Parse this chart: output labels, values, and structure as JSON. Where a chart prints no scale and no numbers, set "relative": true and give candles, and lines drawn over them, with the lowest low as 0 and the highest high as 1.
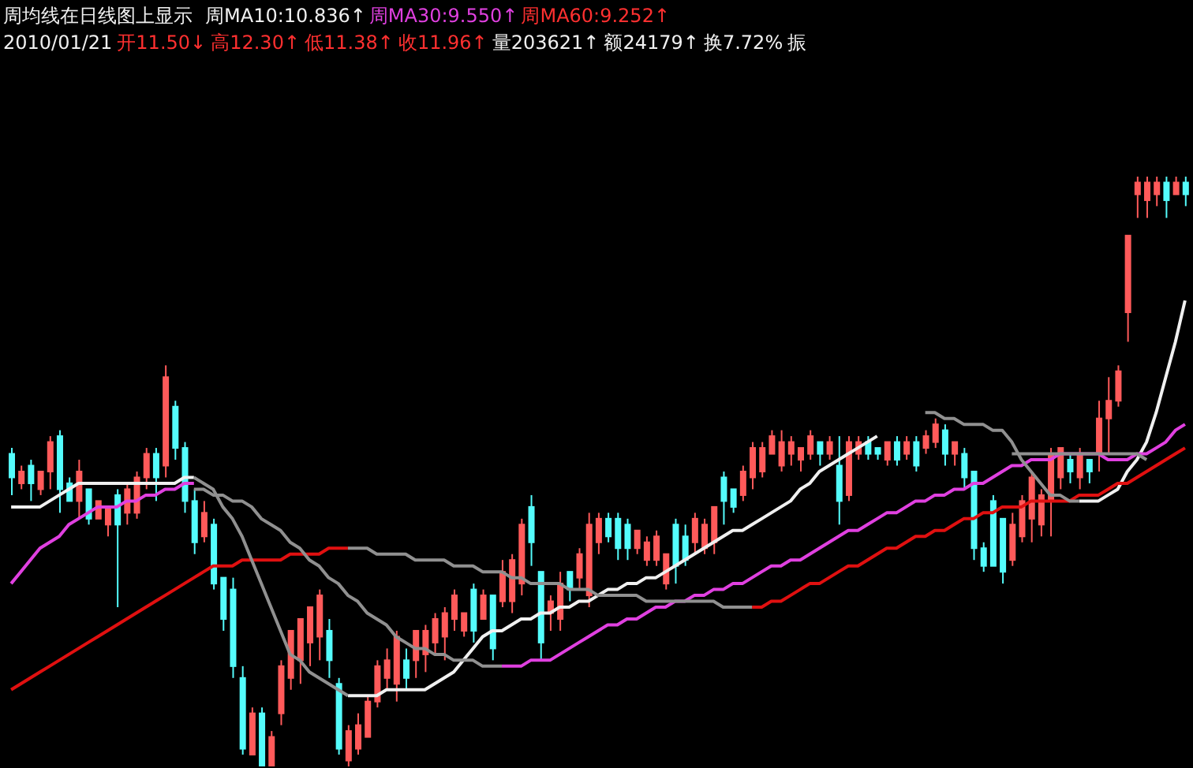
{
  "chart_data": {
    "type": "candlestick",
    "title": "周均线在日线图上显示",
    "relative": true,
    "tick_labels": false,
    "legend": false,
    "colors": [
      "#54fcfc",
      "#ff5a5a",
      "#54fcfc",
      "#ff5a5a",
      "#ff5a5a",
      "#54fcfc",
      "#54fcfc",
      "#ff5a5a",
      "#54fcfc",
      "#ff5a5a",
      "#ff5a5a",
      "#54fcfc",
      "#ff5a5a",
      "#ff5a5a",
      "#ff5a5a",
      "#54fcfc",
      "#ff5a5a",
      "#54fcfc",
      "#54fcfc",
      "#54fcfc",
      "#ff5a5a",
      "#54fcfc",
      "#54fcfc",
      "#54fcfc",
      "#54fcfc",
      "#ff5a5a",
      "#54fcfc",
      "#ff5a5a",
      "#ff5a5a",
      "#ff5a5a",
      "#ff5a5a",
      "#ff5a5a",
      "#ff5a5a",
      "#54fcfc",
      "#54fcfc",
      "#ff5a5a",
      "#ff5a5a",
      "#ff5a5a",
      "#ff5a5a",
      "#ff5a5a",
      "#ff5a5a",
      "#54fcfc",
      "#ff5a5a",
      "#ff5a5a",
      "#ff5a5a",
      "#ff5a5a",
      "#ff5a5a",
      "#ff5a5a",
      "#54fcfc",
      "#ff5a5a",
      "#54fcfc",
      "#ff5a5a",
      "#ff5a5a",
      "#ff5a5a",
      "#54fcfc",
      "#54fcfc",
      "#ff5a5a",
      "#ff5a5a",
      "#54fcfc",
      "#ff5a5a",
      "#ff5a5a",
      "#ff5a5a",
      "#54fcfc",
      "#54fcfc",
      "#54fcfc",
      "#ff5a5a",
      "#ff5a5a",
      "#ff5a5a",
      "#ff5a5a",
      "#54fcfc",
      "#54fcfc",
      "#ff5a5a",
      "#ff5a5a",
      "#ff5a5a",
      "#54fcfc",
      "#54fcfc",
      "#ff5a5a",
      "#ff5a5a",
      "#ff5a5a",
      "#ff5a5a",
      "#ff5a5a",
      "#ff5a5a",
      "#ff5a5a",
      "#ff5a5a",
      "#54fcfc",
      "#ff5a5a",
      "#54fcfc",
      "#ff5a5a",
      "#ff5a5a",
      "#54fcfc",
      "#54fcfc",
      "#ff5a5a",
      "#54fcfc",
      "#ff5a5a",
      "#54fcfc",
      "#ff5a5a",
      "#ff5a5a",
      "#54fcfc",
      "#ff5a5a",
      "#54fcfc",
      "#54fcfc",
      "#54fcfc",
      "#54fcfc",
      "#54fcfc",
      "#ff5a5a",
      "#ff5a5a",
      "#ff5a5a",
      "#ff5a5a",
      "#ff5a5a",
      "#ff5a5a",
      "#54fcfc",
      "#ff5a5a",
      "#54fcfc",
      "#ff5a5a",
      "#ff5a5a",
      "#ff5a5a",
      "#ff5a5a",
      "#ff5a5a",
      "#ff5a5a",
      "#ff5a5a",
      "#54fcfc",
      "#ff5a5a",
      "#54fcfc"
    ],
    "annotations": [
      "周MA10:10.836↑",
      "周MA30:9.550↑",
      "周MA60:9.252↑",
      "2010/01/21",
      "开11.50↓",
      "高12.30↑",
      "低11.38↑",
      "收11.96↑",
      "量203621↑",
      "额24179↑",
      "换7.72%",
      "振"
    ],
    "categories": [
      null,
      null,
      null,
      null,
      null,
      null,
      null,
      null,
      null,
      null,
      null,
      null,
      null,
      null,
      null,
      null,
      null,
      null,
      null,
      null,
      null,
      null,
      null,
      null,
      null,
      null,
      null,
      null,
      null,
      null,
      null,
      null,
      null,
      null,
      null,
      null,
      null,
      null,
      null,
      null,
      null,
      null,
      null,
      null,
      null,
      null,
      null,
      null,
      null,
      null,
      null,
      null,
      null,
      null,
      null,
      null,
      null,
      null,
      null,
      null,
      null,
      null,
      null,
      null,
      null,
      null,
      null,
      null,
      null,
      null,
      null,
      null,
      null,
      null,
      null,
      null,
      null,
      null,
      null,
      null,
      null,
      null,
      null,
      null,
      null,
      null,
      null,
      null,
      null,
      null,
      null,
      null,
      null,
      null,
      null,
      null,
      null,
      null,
      null,
      null,
      null,
      null,
      null,
      null,
      null,
      null,
      null,
      null,
      null,
      null,
      null,
      null,
      null,
      null,
      null,
      null,
      null,
      null,
      null,
      null,
      null,
      null,
      null
    ],
    "ohlc": [
      [
        0.53,
        0.54,
        0.46,
        0.49
      ],
      [
        0.48,
        0.51,
        0.47,
        0.5
      ],
      [
        0.51,
        0.52,
        0.45,
        0.48
      ],
      [
        0.47,
        0.5,
        0.46,
        0.5
      ],
      [
        0.5,
        0.56,
        0.47,
        0.55
      ],
      [
        0.56,
        0.57,
        0.43,
        0.47
      ],
      [
        0.48,
        0.49,
        0.45,
        0.45
      ],
      [
        0.45,
        0.52,
        0.42,
        0.5
      ],
      [
        0.47,
        0.47,
        0.41,
        0.42
      ],
      [
        0.42,
        0.45,
        0.42,
        0.45
      ],
      [
        0.41,
        0.44,
        0.39,
        0.44
      ],
      [
        0.46,
        0.47,
        0.27,
        0.41
      ],
      [
        0.43,
        0.48,
        0.41,
        0.47
      ],
      [
        0.43,
        0.5,
        0.42,
        0.49
      ],
      [
        0.49,
        0.54,
        0.47,
        0.53
      ],
      [
        0.53,
        0.54,
        0.45,
        0.49
      ],
      [
        0.51,
        0.68,
        0.49,
        0.66
      ],
      [
        0.61,
        0.62,
        0.52,
        0.54
      ],
      [
        0.54,
        0.55,
        0.43,
        0.45
      ],
      [
        0.45,
        0.47,
        0.36,
        0.38
      ],
      [
        0.39,
        0.45,
        0.38,
        0.43
      ],
      [
        0.41,
        0.42,
        0.3,
        0.31
      ],
      [
        0.32,
        0.32,
        0.23,
        0.25
      ],
      [
        0.3,
        0.32,
        0.15,
        0.17
      ],
      [
        0.15,
        0.17,
        0.02,
        0.03
      ],
      [
        0.02,
        0.1,
        0.02,
        0.09
      ],
      [
        0.09,
        0.1,
        0,
        0
      ],
      [
        0,
        0.06,
        0,
        0.05
      ],
      [
        0.09,
        0.18,
        0.07,
        0.17
      ],
      [
        0.15,
        0.23,
        0.13,
        0.23
      ],
      [
        0.18,
        0.25,
        0.14,
        0.25
      ],
      [
        0.21,
        0.27,
        0.17,
        0.27
      ],
      [
        0.22,
        0.3,
        0.18,
        0.29
      ],
      [
        0.23,
        0.25,
        0.15,
        0.18
      ],
      [
        0.14,
        0.15,
        0.02,
        0.03
      ],
      [
        0.01,
        0.07,
        0,
        0.06
      ],
      [
        0.03,
        0.09,
        0.02,
        0.07
      ],
      [
        0.05,
        0.12,
        0.05,
        0.11
      ],
      [
        0.11,
        0.18,
        0.1,
        0.17
      ],
      [
        0.15,
        0.2,
        0.13,
        0.18
      ],
      [
        0.14,
        0.23,
        0.11,
        0.22
      ],
      [
        0.18,
        0.2,
        0.13,
        0.15
      ],
      [
        0.18,
        0.23,
        0.15,
        0.23
      ],
      [
        0.19,
        0.24,
        0.16,
        0.23
      ],
      [
        0.21,
        0.26,
        0.19,
        0.25
      ],
      [
        0.22,
        0.27,
        0.18,
        0.26
      ],
      [
        0.25,
        0.3,
        0.23,
        0.29
      ],
      [
        0.23,
        0.26,
        0.22,
        0.26
      ],
      [
        0.3,
        0.31,
        0.21,
        0.23
      ],
      [
        0.25,
        0.3,
        0.25,
        0.29
      ],
      [
        0.29,
        0.29,
        0.18,
        0.2
      ],
      [
        0.28,
        0.35,
        0.27,
        0.33
      ],
      [
        0.28,
        0.36,
        0.26,
        0.35
      ],
      [
        0.31,
        0.42,
        0.29,
        0.41
      ],
      [
        0.44,
        0.46,
        0.34,
        0.38
      ],
      [
        0.33,
        0.33,
        0.18,
        0.21
      ],
      [
        0.26,
        0.29,
        0.23,
        0.28
      ],
      [
        0.25,
        0.33,
        0.23,
        0.31
      ],
      [
        0.33,
        0.33,
        0.28,
        0.3
      ],
      [
        0.32,
        0.37,
        0.3,
        0.36
      ],
      [
        0.29,
        0.43,
        0.27,
        0.41
      ],
      [
        0.38,
        0.43,
        0.36,
        0.42
      ],
      [
        0.42,
        0.43,
        0.38,
        0.39
      ],
      [
        0.42,
        0.43,
        0.35,
        0.37
      ],
      [
        0.41,
        0.42,
        0.35,
        0.37
      ],
      [
        0.37,
        0.4,
        0.36,
        0.4
      ],
      [
        0.35,
        0.39,
        0.34,
        0.38
      ],
      [
        0.35,
        0.4,
        0.34,
        0.39
      ],
      [
        0.31,
        0.36,
        0.3,
        0.36
      ],
      [
        0.41,
        0.42,
        0.31,
        0.34
      ],
      [
        0.39,
        0.41,
        0.34,
        0.35
      ],
      [
        0.38,
        0.43,
        0.36,
        0.42
      ],
      [
        0.37,
        0.42,
        0.36,
        0.41
      ],
      [
        0.38,
        0.44,
        0.36,
        0.44
      ],
      [
        0.49,
        0.5,
        0.41,
        0.45
      ],
      [
        0.47,
        0.47,
        0.43,
        0.44
      ],
      [
        0.46,
        0.51,
        0.45,
        0.5
      ],
      [
        0.49,
        0.55,
        0.47,
        0.54
      ],
      [
        0.5,
        0.55,
        0.49,
        0.54
      ],
      [
        0.53,
        0.57,
        0.53,
        0.56
      ],
      [
        0.51,
        0.57,
        0.5,
        0.55
      ],
      [
        0.53,
        0.56,
        0.51,
        0.55
      ],
      [
        0.52,
        0.54,
        0.5,
        0.54
      ],
      [
        0.53,
        0.57,
        0.52,
        0.56
      ],
      [
        0.55,
        0.55,
        0.51,
        0.53
      ],
      [
        0.53,
        0.56,
        0.52,
        0.55
      ],
      [
        0.51,
        0.56,
        0.41,
        0.45
      ],
      [
        0.46,
        0.56,
        0.45,
        0.55
      ],
      [
        0.53,
        0.56,
        0.52,
        0.55
      ],
      [
        0.55,
        0.56,
        0.52,
        0.53
      ],
      [
        0.54,
        0.54,
        0.52,
        0.53
      ],
      [
        0.52,
        0.55,
        0.51,
        0.55
      ],
      [
        0.55,
        0.56,
        0.51,
        0.52
      ],
      [
        0.53,
        0.56,
        0.52,
        0.55
      ],
      [
        0.55,
        0.56,
        0.5,
        0.51
      ],
      [
        0.54,
        0.57,
        0.53,
        0.56
      ],
      [
        0.55,
        0.59,
        0.54,
        0.58
      ],
      [
        0.57,
        0.58,
        0.51,
        0.53
      ],
      [
        0.53,
        0.55,
        0.51,
        0.55
      ],
      [
        0.53,
        0.54,
        0.47,
        0.49
      ],
      [
        0.5,
        0.5,
        0.35,
        0.37
      ],
      [
        0.37,
        0.38,
        0.33,
        0.34
      ],
      [
        0.45,
        0.46,
        0.34,
        0.34
      ],
      [
        0.42,
        0.42,
        0.31,
        0.33
      ],
      [
        0.35,
        0.43,
        0.34,
        0.41
      ],
      [
        0.39,
        0.46,
        0.38,
        0.45
      ],
      [
        0.42,
        0.5,
        0.38,
        0.49
      ],
      [
        0.41,
        0.47,
        0.39,
        0.46
      ],
      [
        0.45,
        0.54,
        0.39,
        0.53
      ],
      [
        0.49,
        0.54,
        0.47,
        0.54
      ],
      [
        0.52,
        0.53,
        0.48,
        0.5
      ],
      [
        0.49,
        0.54,
        0.47,
        0.53
      ],
      [
        0.52,
        0.52,
        0.48,
        0.5
      ],
      [
        0.53,
        0.62,
        0.5,
        0.59
      ],
      [
        0.59,
        0.66,
        0.53,
        0.62
      ],
      [
        0.62,
        0.68,
        0.61,
        0.67
      ],
      [
        0.77,
        0.9,
        0.72,
        0.9
      ],
      [
        0.97,
        1,
        0.93,
        0.99
      ],
      [
        0.96,
        1,
        0.93,
        0.99
      ],
      [
        0.97,
        1,
        0.95,
        0.99
      ],
      [
        0.99,
        1,
        0.93,
        0.96
      ],
      [
        0.97,
        1,
        0.97,
        0.99
      ],
      [
        0.99,
        1,
        0.95,
        0.97
      ]
    ],
    "series": [
      {
        "type": "line",
        "color": "#f0f0f0",
        "values": [
          0.44,
          0.44,
          0.44,
          0.44,
          0.45,
          0.46,
          0.47,
          0.48,
          0.48,
          0.48,
          0.48,
          0.48,
          0.48,
          0.48,
          0.48,
          0.48,
          0.48,
          0.48,
          0.49,
          0.49,
          null,
          null,
          null,
          null,
          null,
          null,
          null,
          null,
          null,
          null,
          null,
          null,
          null,
          null,
          null,
          0.12,
          0.12,
          0.12,
          0.12,
          0.13,
          0.13,
          0.13,
          0.13,
          0.13,
          0.14,
          0.15,
          0.16,
          0.18,
          0.2,
          0.22,
          0.23,
          0.23,
          0.24,
          0.25,
          0.25,
          0.26,
          0.26,
          0.27,
          0.27,
          0.28,
          0.28,
          0.29,
          0.3,
          0.3,
          0.31,
          0.31,
          0.32,
          0.32,
          0.33,
          0.34,
          0.35,
          0.36,
          0.37,
          0.38,
          0.39,
          0.4,
          0.4,
          0.41,
          0.42,
          0.43,
          0.44,
          0.45,
          0.47,
          0.48,
          0.5,
          0.51,
          0.52,
          0.53,
          0.54,
          0.55,
          0.56,
          null,
          null,
          null,
          null,
          null,
          null,
          null,
          null,
          null,
          null,
          null,
          null,
          null,
          null,
          null,
          null,
          null,
          null,
          null,
          null,
          0.45,
          0.45,
          0.45,
          0.46,
          0.47,
          0.5,
          0.52,
          0.55,
          0.6,
          0.66,
          0.72,
          0.79
        ]
      },
      {
        "type": "line",
        "color": "#e040e0",
        "values": [
          0.31,
          0.33,
          0.35,
          0.37,
          0.38,
          0.39,
          0.41,
          0.42,
          0.43,
          0.44,
          0.44,
          0.44,
          0.45,
          0.45,
          0.46,
          0.46,
          0.47,
          0.47,
          0.48,
          0.48,
          null,
          null,
          null,
          null,
          null,
          null,
          null,
          null,
          null,
          null,
          null,
          null,
          null,
          null,
          null,
          null,
          null,
          null,
          null,
          null,
          null,
          null,
          null,
          null,
          null,
          null,
          null,
          null,
          null,
          null,
          null,
          0.17,
          0.17,
          0.17,
          0.18,
          0.18,
          0.18,
          0.19,
          0.2,
          0.21,
          0.22,
          0.23,
          0.24,
          0.24,
          0.25,
          0.25,
          0.26,
          0.27,
          0.27,
          0.28,
          0.28,
          0.29,
          0.29,
          0.3,
          0.3,
          0.31,
          0.31,
          0.32,
          0.33,
          0.34,
          0.34,
          0.35,
          0.35,
          0.36,
          0.37,
          0.38,
          0.39,
          0.4,
          0.4,
          0.41,
          0.42,
          0.43,
          0.43,
          0.44,
          0.45,
          0.45,
          0.46,
          0.46,
          0.47,
          0.47,
          0.48,
          0.48,
          0.49,
          0.5,
          0.51,
          0.51,
          0.52,
          0.52,
          0.52,
          0.53,
          0.53,
          0.53,
          0.53,
          0.53,
          0.52,
          0.52,
          0.52,
          0.53,
          0.53,
          0.54,
          0.55,
          0.57,
          0.58
        ]
      },
      {
        "type": "line",
        "color": "#e01010",
        "values": [
          0.13,
          0.14,
          0.15,
          0.16,
          0.17,
          0.18,
          0.19,
          0.2,
          0.21,
          0.22,
          0.23,
          0.24,
          0.25,
          0.26,
          0.27,
          0.28,
          0.29,
          0.3,
          0.31,
          0.32,
          0.33,
          0.34,
          0.34,
          0.34,
          0.35,
          0.35,
          0.35,
          0.35,
          0.35,
          0.36,
          0.36,
          0.36,
          0.36,
          0.37,
          0.37,
          0.37,
          null,
          null,
          null,
          null,
          null,
          null,
          null,
          null,
          null,
          null,
          null,
          null,
          null,
          null,
          null,
          null,
          null,
          null,
          null,
          null,
          null,
          null,
          null,
          null,
          null,
          null,
          null,
          null,
          null,
          null,
          null,
          null,
          null,
          null,
          null,
          null,
          null,
          null,
          null,
          null,
          null,
          0.27,
          0.27,
          0.28,
          0.28,
          0.29,
          0.3,
          0.31,
          0.31,
          0.32,
          0.33,
          0.34,
          0.34,
          0.35,
          0.36,
          0.37,
          0.37,
          0.38,
          0.39,
          0.39,
          0.4,
          0.4,
          0.41,
          0.42,
          0.42,
          0.43,
          0.43,
          0.44,
          0.44,
          0.44,
          0.45,
          0.45,
          0.45,
          0.45,
          0.45,
          0.46,
          0.46,
          0.46,
          0.47,
          0.48,
          0.48,
          0.49,
          0.5,
          0.51,
          0.52,
          0.53,
          0.54
        ]
      },
      {
        "type": "line",
        "color": "#909090",
        "values": [
          null,
          null,
          null,
          null,
          null,
          null,
          null,
          null,
          null,
          null,
          null,
          null,
          null,
          null,
          null,
          null,
          null,
          null,
          null,
          null,
          null,
          null,
          null,
          null,
          null,
          null,
          null,
          null,
          null,
          null,
          null,
          null,
          null,
          null,
          null,
          0.37,
          0.37,
          0.37,
          0.36,
          0.36,
          0.36,
          0.36,
          0.35,
          0.35,
          0.35,
          0.35,
          0.34,
          0.34,
          0.34,
          0.33,
          0.33,
          0.33,
          0.32,
          0.32,
          0.31,
          0.31,
          0.31,
          0.31,
          0.3,
          0.3,
          0.3,
          0.29,
          0.29,
          0.29,
          0.29,
          0.29,
          0.28,
          0.28,
          0.28,
          0.28,
          0.28,
          0.28,
          0.28,
          0.28,
          0.27,
          0.27,
          0.27,
          0.27,
          null,
          null,
          null,
          null,
          null,
          null,
          null,
          null,
          null,
          null,
          null,
          null,
          null,
          null,
          null,
          null,
          null,
          0.6,
          0.6,
          0.59,
          0.59,
          0.58,
          0.58,
          0.58,
          0.57,
          0.57,
          0.55,
          0.52,
          0.5,
          0.48,
          0.46,
          0.46,
          0.45,
          0.45,
          null,
          null,
          null,
          null,
          null,
          null,
          null,
          null,
          null,
          null,
          null
        ]
      },
      {
        "type": "line",
        "color": "#909090",
        "values": [
          null,
          null,
          null,
          null,
          null,
          null,
          null,
          null,
          null,
          null,
          null,
          null,
          null,
          null,
          null,
          null,
          null,
          null,
          null,
          0.49,
          0.48,
          0.47,
          0.44,
          0.42,
          0.39,
          0.35,
          0.31,
          0.27,
          0.23,
          0.19,
          0.18,
          0.16,
          0.15,
          0.14,
          0.13,
          0.12,
          null,
          null,
          null,
          null,
          null,
          null,
          null,
          null,
          null,
          null,
          null,
          null,
          null,
          null,
          null,
          null,
          null,
          null,
          null,
          null,
          null,
          null,
          null,
          null,
          null,
          null,
          null,
          null,
          null,
          null,
          null,
          null,
          null,
          null,
          null,
          null,
          null,
          null,
          null,
          null,
          null,
          null,
          null,
          null,
          null,
          null,
          null,
          null,
          null,
          null,
          null,
          null,
          null,
          null,
          null,
          null,
          null,
          null,
          null,
          null,
          null,
          null,
          null,
          null,
          null,
          null,
          null,
          null,
          0.53,
          0.53,
          0.53,
          0.53,
          0.53,
          0.53,
          0.53,
          0.53,
          0.53,
          0.53,
          0.53,
          0.53,
          0.53,
          0.53,
          0.52,
          null,
          null,
          null,
          null
        ]
      },
      {
        "type": "line",
        "color": "#909090",
        "values": [
          null,
          null,
          null,
          null,
          null,
          null,
          null,
          null,
          null,
          null,
          null,
          null,
          null,
          null,
          null,
          null,
          null,
          null,
          null,
          0.47,
          0.47,
          0.46,
          0.46,
          0.45,
          0.45,
          0.44,
          0.42,
          0.41,
          0.4,
          0.38,
          0.37,
          0.35,
          0.34,
          0.32,
          0.31,
          0.29,
          0.28,
          0.26,
          0.25,
          0.24,
          0.22,
          0.21,
          0.2,
          0.2,
          0.19,
          0.19,
          0.18,
          0.18,
          0.18,
          0.17,
          0.17,
          0.17,
          null,
          null,
          null,
          null,
          null,
          null,
          null,
          null,
          null,
          null,
          null,
          null,
          null,
          null,
          null,
          null,
          null,
          null,
          null,
          null,
          null,
          null,
          null,
          null,
          null,
          null,
          null,
          null,
          null,
          null,
          null,
          null,
          null,
          null,
          null,
          null,
          null,
          null,
          null,
          null,
          null,
          null,
          null,
          null,
          null,
          null,
          null,
          null,
          null,
          null,
          null,
          null,
          null,
          null,
          null,
          null,
          null,
          null,
          null,
          null,
          null,
          null,
          null,
          null,
          null,
          null,
          null,
          null,
          null,
          null,
          null
        ]
      }
    ]
  }
}
